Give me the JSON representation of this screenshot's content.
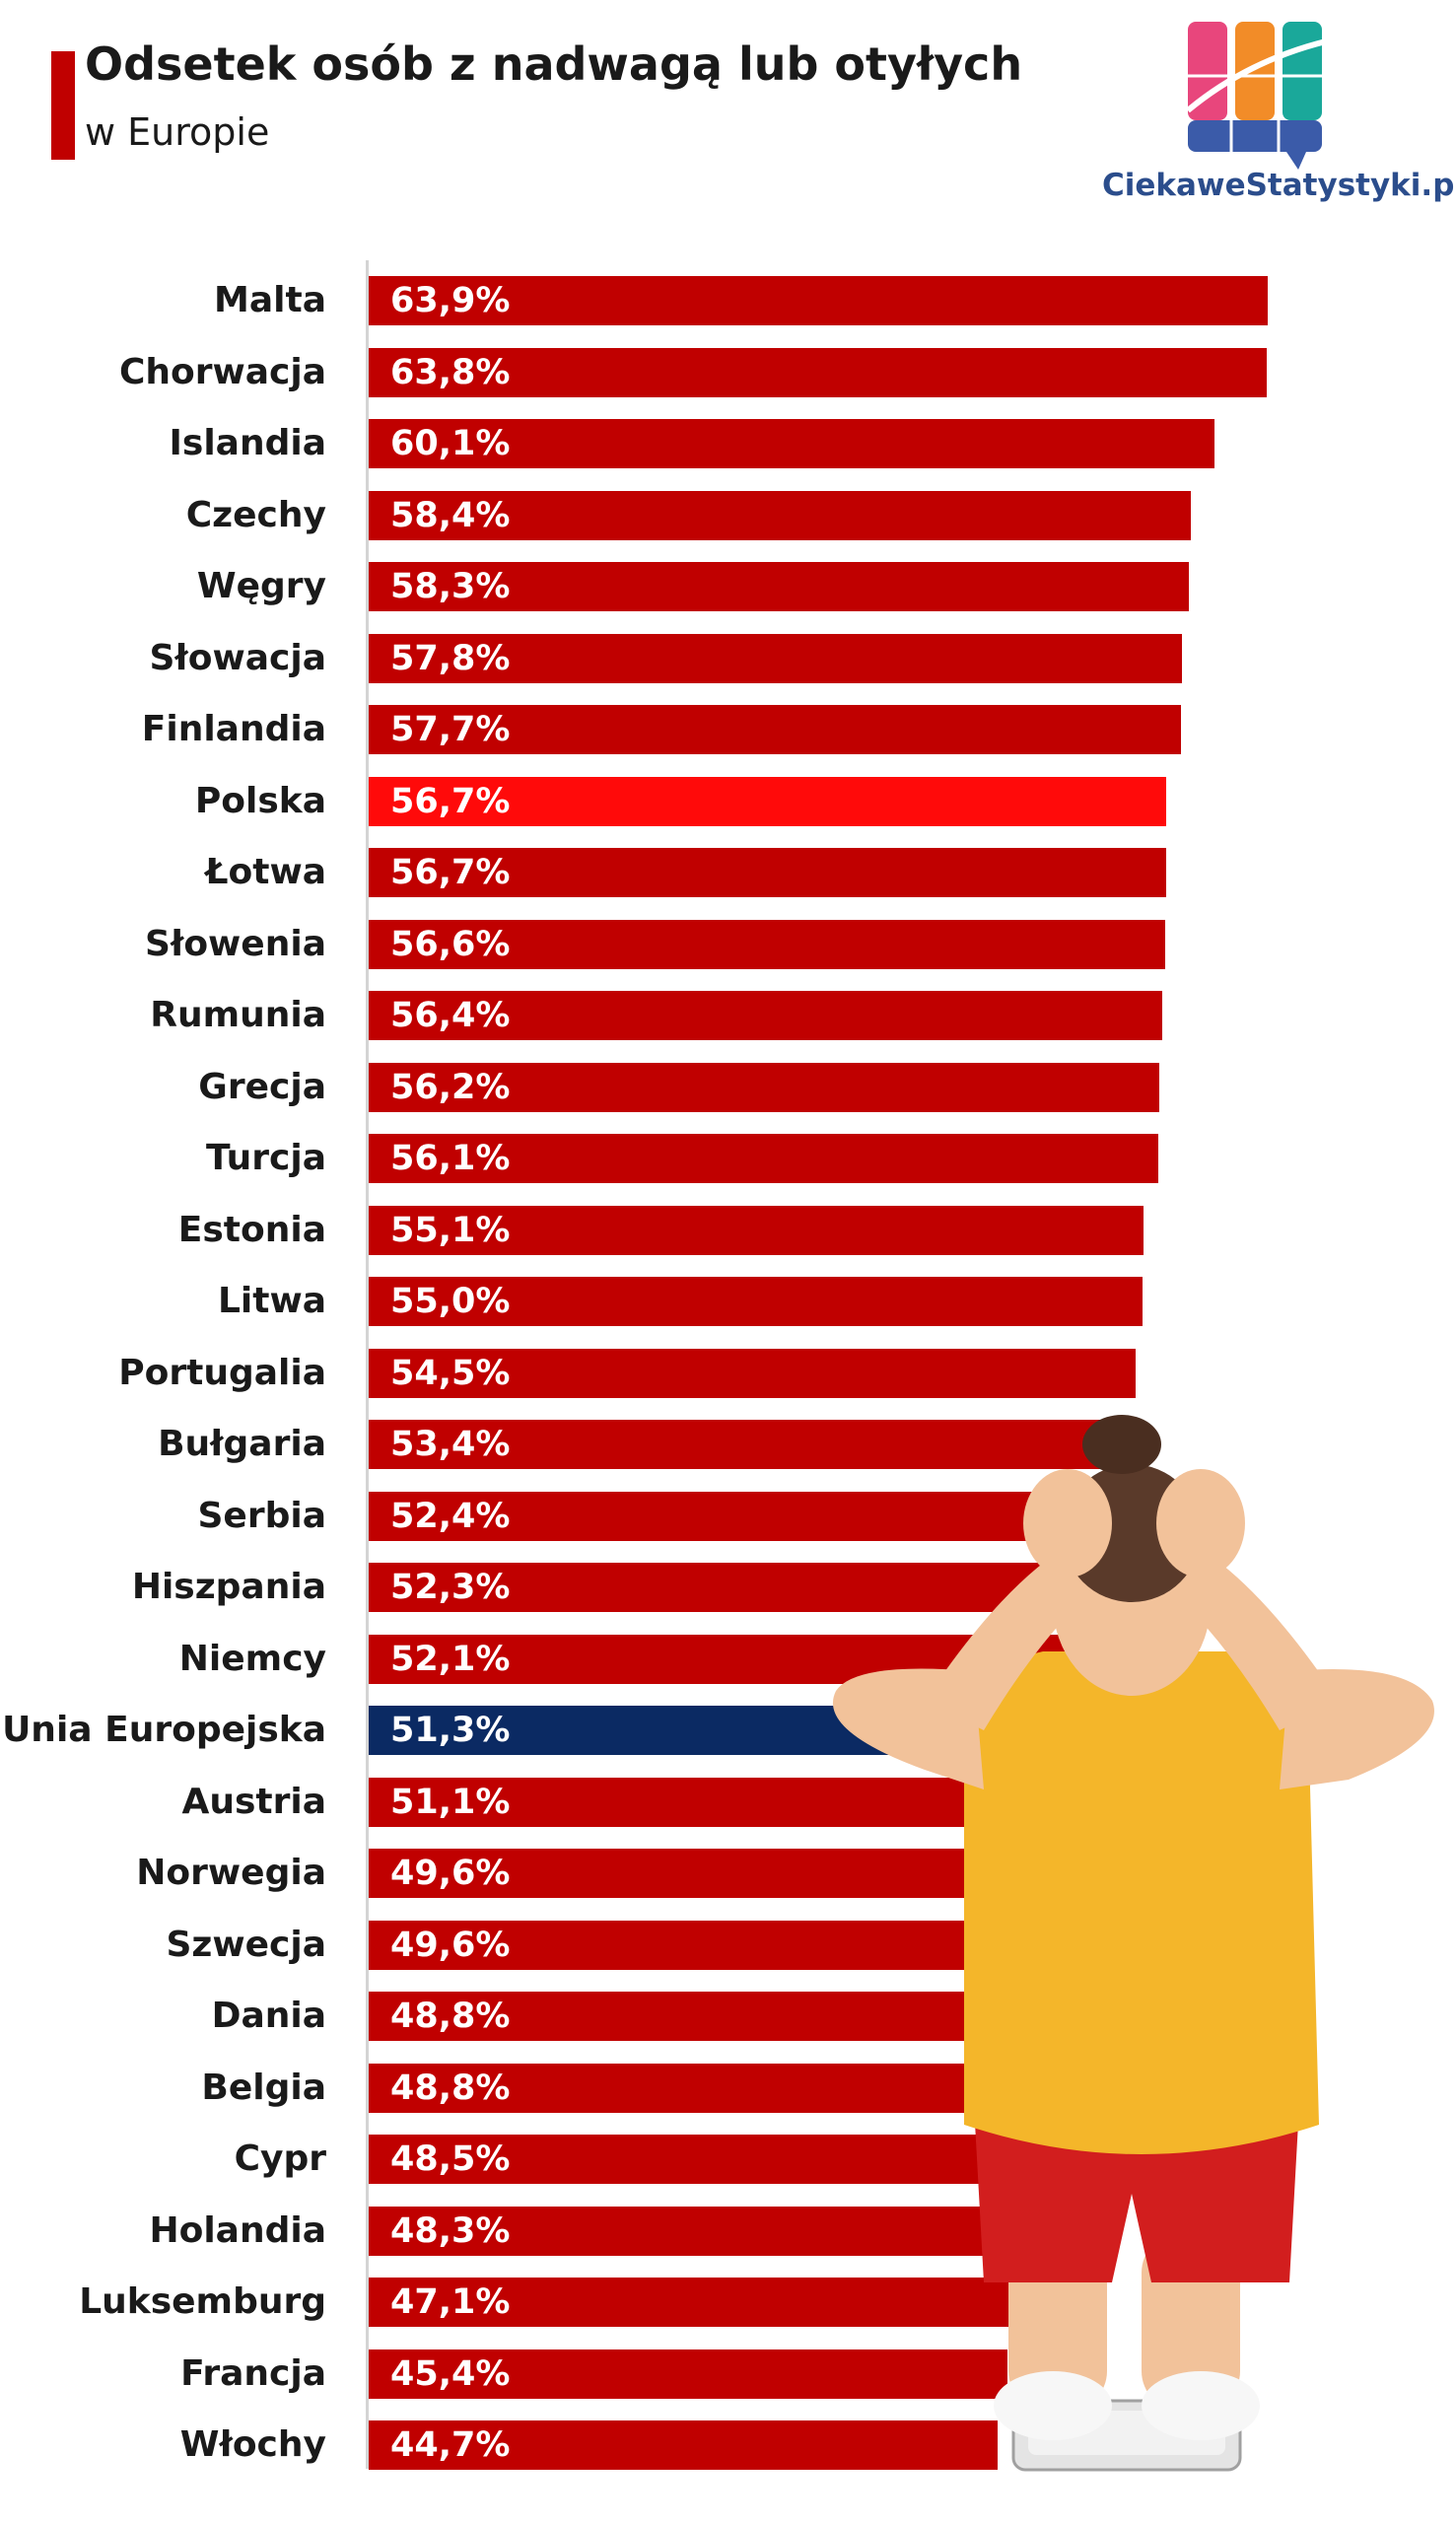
{
  "header": {
    "title": "Odsetek osób z nadwagą lub otyłych",
    "subtitle": "w Europie"
  },
  "brand": {
    "name": "CiekaweStatystyki.pl",
    "colors": [
      "#e8467c",
      "#f28c28",
      "#1aa89a",
      "#3b5ba9"
    ]
  },
  "colors": {
    "default_bar": "#c00000",
    "highlight_poland": "#ff0a0a",
    "highlight_eu": "#0b2a63"
  },
  "illustration": {
    "icon": "overweight-woman-on-scale-photo"
  },
  "chart_data": {
    "type": "bar",
    "orientation": "horizontal",
    "title": "Odsetek osób z nadwagą lub otyłych",
    "subtitle": "w Europie",
    "xlim": [
      0,
      63.9
    ],
    "categories": [
      "Malta",
      "Chorwacja",
      "Islandia",
      "Czechy",
      "Węgry",
      "Słowacja",
      "Finlandia",
      "Polska",
      "Łotwa",
      "Słowenia",
      "Rumunia",
      "Grecja",
      "Turcja",
      "Estonia",
      "Litwa",
      "Portugalia",
      "Bułgaria",
      "Serbia",
      "Hiszpania",
      "Niemcy",
      "Unia Europejska",
      "Austria",
      "Norwegia",
      "Szwecja",
      "Dania",
      "Belgia",
      "Cypr",
      "Holandia",
      "Luksemburg",
      "Francja",
      "Włochy"
    ],
    "values": [
      63.9,
      63.8,
      60.1,
      58.4,
      58.3,
      57.8,
      57.7,
      56.7,
      56.7,
      56.6,
      56.4,
      56.2,
      56.1,
      55.1,
      55.0,
      54.5,
      53.4,
      52.4,
      52.3,
      52.1,
      51.3,
      51.1,
      49.6,
      49.6,
      48.8,
      48.8,
      48.5,
      48.3,
      47.1,
      45.4,
      44.7
    ],
    "value_labels": [
      "63,9%",
      "63,8%",
      "60,1%",
      "58,4%",
      "58,3%",
      "57,8%",
      "57,7%",
      "56,7%",
      "56,7%",
      "56,6%",
      "56,4%",
      "56,2%",
      "56,1%",
      "55,1%",
      "55,0%",
      "54,5%",
      "53,4%",
      "52,4%",
      "52,3%",
      "52,1%",
      "51,3%",
      "51,1%",
      "49,6%",
      "49,6%",
      "48,8%",
      "48,8%",
      "48,5%",
      "48,3%",
      "47,1%",
      "45,4%",
      "44,7%"
    ],
    "highlights": {
      "Polska": "#ff0a0a",
      "Unia Europejska": "#0b2a63"
    },
    "grid": false,
    "legend": "none"
  }
}
